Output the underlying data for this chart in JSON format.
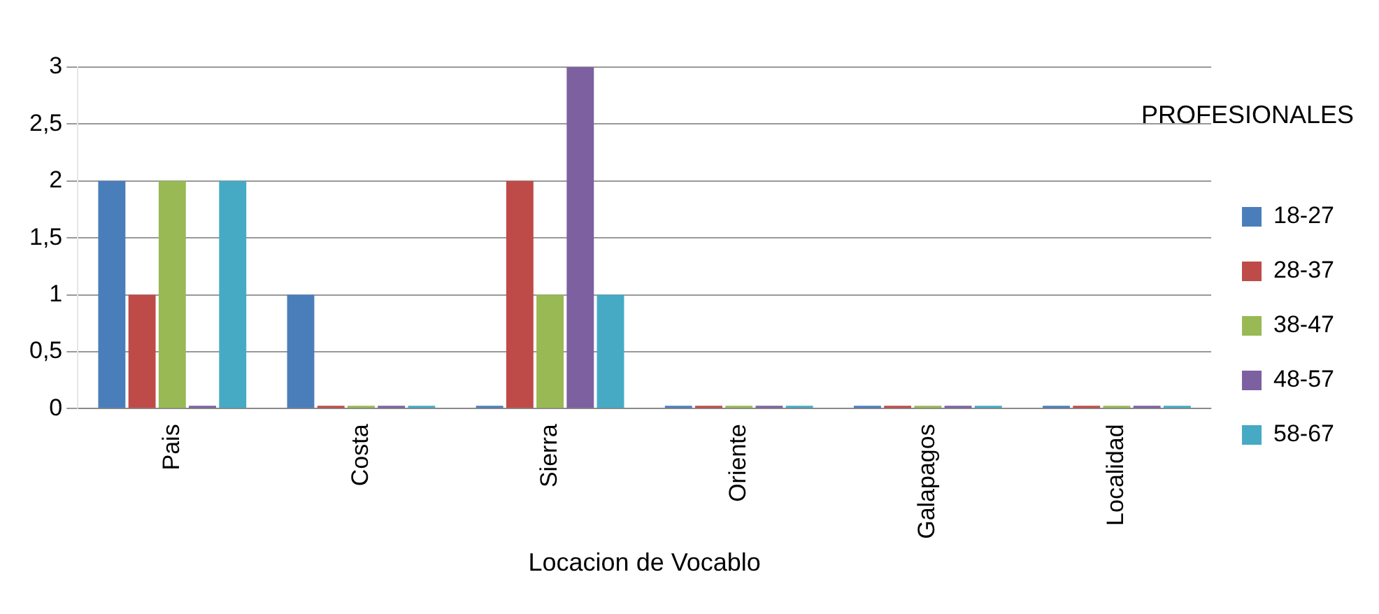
{
  "chart_data": {
    "type": "bar",
    "xlabel": "Locacion de Vocablo",
    "legend_title": "PROFESIONALES",
    "categories": [
      "Pais",
      "Costa",
      "Sierra",
      "Oriente",
      "Galapagos",
      "Localidad"
    ],
    "series": [
      {
        "name": "18-27",
        "color": "#4a7ebb",
        "values": [
          2,
          1,
          0,
          0,
          0,
          0
        ]
      },
      {
        "name": "28-37",
        "color": "#be4b48",
        "values": [
          1,
          0,
          2,
          0,
          0,
          0
        ]
      },
      {
        "name": "38-47",
        "color": "#98b954",
        "values": [
          2,
          0,
          1,
          0,
          0,
          0
        ]
      },
      {
        "name": "48-57",
        "color": "#7d60a0",
        "values": [
          0,
          0,
          3,
          0,
          0,
          0
        ]
      },
      {
        "name": "58-67",
        "color": "#46aac5",
        "values": [
          2,
          0,
          1,
          0,
          0,
          0
        ]
      }
    ],
    "ylim": [
      0,
      3
    ],
    "yticks": [
      0,
      {
        "value": 0.5,
        "label": "0,5"
      },
      1,
      {
        "value": 1.5,
        "label": "1,5"
      },
      2,
      {
        "value": 2.5,
        "label": "2,5"
      },
      3
    ],
    "grid": "y",
    "legend": "right"
  }
}
